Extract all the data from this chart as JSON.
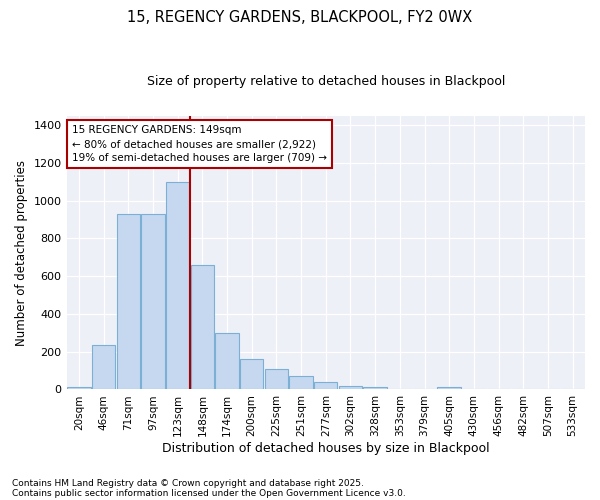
{
  "title": "15, REGENCY GARDENS, BLACKPOOL, FY2 0WX",
  "subtitle": "Size of property relative to detached houses in Blackpool",
  "xlabel": "Distribution of detached houses by size in Blackpool",
  "ylabel": "Number of detached properties",
  "footnote1": "Contains HM Land Registry data © Crown copyright and database right 2025.",
  "footnote2": "Contains public sector information licensed under the Open Government Licence v3.0.",
  "annotation_line1": "15 REGENCY GARDENS: 149sqm",
  "annotation_line2": "← 80% of detached houses are smaller (2,922)",
  "annotation_line3": "19% of semi-detached houses are larger (709) →",
  "bar_color": "#c5d8f0",
  "bar_edge_color": "#7bafd4",
  "line_color": "#aa0000",
  "bg_color": "#eef0f8",
  "categories": [
    "20sqm",
    "46sqm",
    "71sqm",
    "97sqm",
    "123sqm",
    "148sqm",
    "174sqm",
    "200sqm",
    "225sqm",
    "251sqm",
    "277sqm",
    "302sqm",
    "328sqm",
    "353sqm",
    "379sqm",
    "405sqm",
    "430sqm",
    "456sqm",
    "482sqm",
    "507sqm",
    "533sqm"
  ],
  "values": [
    15,
    235,
    930,
    930,
    1100,
    660,
    300,
    160,
    110,
    70,
    40,
    20,
    15,
    0,
    0,
    15,
    0,
    0,
    0,
    0,
    5
  ],
  "vline_idx": 5,
  "ylim": [
    0,
    1450
  ],
  "yticks": [
    0,
    200,
    400,
    600,
    800,
    1000,
    1200,
    1400
  ]
}
